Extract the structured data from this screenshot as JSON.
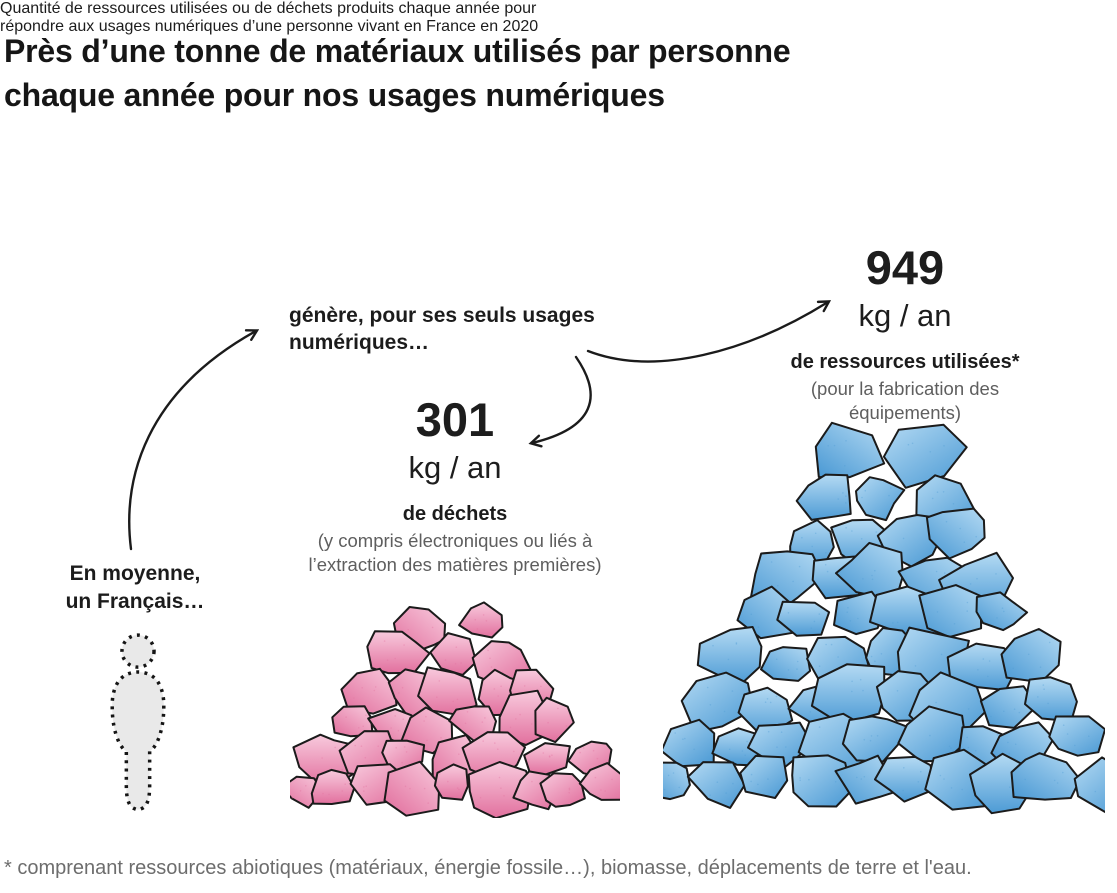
{
  "header": {
    "title": "Près d’une tonne de matériaux utilisés par personne chaque année pour nos usages numériques",
    "title_lines": [
      "Près d’une tonne de matériaux utilisés par personne",
      "chaque année pour nos usages numériques"
    ],
    "subtitle": "Quantité de ressources utilisées ou de déchets produits chaque année pour répondre aux usages numériques d’une personne vivant en France en 2020",
    "subtitle_lines": [
      "Quantité de ressources utilisées ou de déchets produits chaque année pour",
      "répondre aux usages numériques d’une personne vivant en France en 2020"
    ]
  },
  "annotations": {
    "person_label": "En moyenne, un Français…",
    "person_label_lines": [
      "En moyenne,",
      "un Français…"
    ],
    "generates_label": "génère, pour ses seuls usages numériques…",
    "generates_label_lines": [
      "génère, pour ses seuls usages",
      "numériques…"
    ]
  },
  "chart_data": {
    "type": "bar",
    "variant": "pictorial-rubble-piles",
    "title": "Près d’une tonne de matériaux utilisés par personne chaque année pour nos usages numériques",
    "unit": "kg / an",
    "categories": [
      "de déchets",
      "de ressources utilisées*"
    ],
    "values": [
      301,
      949
    ],
    "series": [
      {
        "value": 301,
        "unit": "kg / an",
        "label": "de déchets",
        "note": "(y compris électroniques ou liés à l’extraction des matières premières)",
        "pile_color_light": "#f8cadd",
        "pile_color_dark": "#e2709e",
        "outline_color": "#1b1b1b"
      },
      {
        "value": 949,
        "unit": "kg / an",
        "label": "de ressources utilisées*",
        "note": "(pour la fabrication des équipements)",
        "pile_color_light": "#b4daf3",
        "pile_color_dark": "#4d9bd5",
        "outline_color": "#1b1b1b"
      }
    ]
  },
  "footnote": "* comprenant ressources abiotiques (matériaux, énergie fossile…), biomasse, déplacements de terre et l'eau.",
  "colors": {
    "text_primary": "#1c1c1c",
    "text_secondary": "#5e5e5e",
    "footnote_gray": "#6d6d6d",
    "person_fill": "#e9e9e9",
    "arrow": "#1b1b1b"
  }
}
